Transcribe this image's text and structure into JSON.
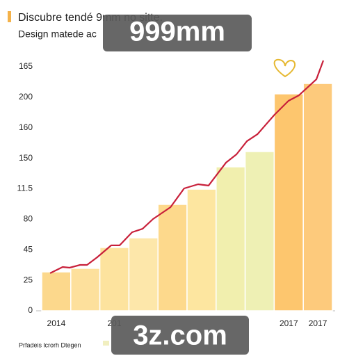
{
  "chart_data": {
    "type": "bar",
    "title": "Discubre tendé 9mm no sitte.",
    "subtitle": "Design matede ac",
    "categories": [
      "2014",
      null,
      "201",
      null,
      null,
      null,
      null,
      null,
      "2017",
      "2017"
    ],
    "values": [
      31.9,
      34.8,
      51.9,
      59.8,
      87.2,
      99.7,
      118,
      130.5,
      177.8,
      186.3
    ],
    "colors": [
      "#fcd88c",
      "#fde09c",
      "#fde39e",
      "#fde7aa",
      "#fdd98c",
      "#fde6a0",
      "#f1efae",
      "#eef0b4",
      "#fdc66e",
      "#fdca7c"
    ],
    "line": {
      "color": "#c8203a",
      "x": [
        0.29,
        0.72,
        0.96,
        1.32,
        1.56,
        1.91,
        2.39,
        2.68,
        3.11,
        3.47,
        3.83,
        4.43,
        4.9,
        5.38,
        5.74,
        6.34,
        6.7,
        7.06,
        7.42,
        8.01,
        8.49,
        8.85,
        9.45,
        9.69
      ],
      "values": [
        30.8,
        35.9,
        35.3,
        37.6,
        37.6,
        43.9,
        53.6,
        53.6,
        64.4,
        67.2,
        75.2,
        84.9,
        100.3,
        103.7,
        102.6,
        121.4,
        128.2,
        139,
        144.7,
        160.7,
        172.1,
        176.6,
        189.7,
        205.1
      ]
    },
    "xlim": [
      0,
      10
    ],
    "ylim": [
      0,
      200
    ],
    "yticks": [
      0,
      25,
      {
        "value": 50,
        "label": "45"
      },
      {
        "value": 75,
        "label": "80"
      },
      {
        "value": 100,
        "label": "11.5"
      },
      {
        "value": 125,
        "label": "150"
      },
      {
        "value": 150,
        "label": "160"
      },
      {
        "value": 175,
        "label": "200"
      },
      {
        "value": 200,
        "label": "165"
      }
    ],
    "legend_text": "Prfadeis lcrorh Dtegen",
    "watermarks": [
      "999mm",
      "3z.com"
    ]
  }
}
